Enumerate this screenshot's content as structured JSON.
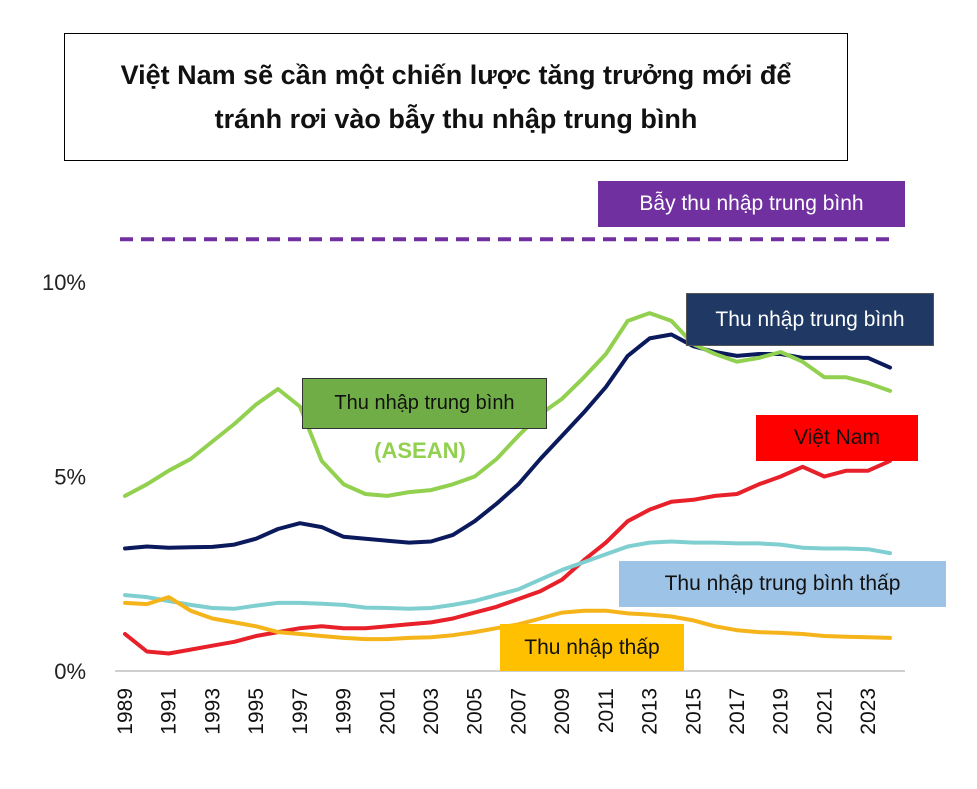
{
  "title": {
    "line1": "Việt Nam sẽ cần một chiến lược tăng trưởng mới để",
    "line2": "tránh rơi vào bẫy thu nhập trung bình"
  },
  "labels": {
    "trap": "Bẫy thu nhập trung bình",
    "middle": "Thu nhập trung bình",
    "asean_box": "Thu nhập trung bình",
    "asean_sub": "(ASEAN)",
    "vietnam": "Việt Nam",
    "lower_middle": "Thu nhập trung bình thấp",
    "low": "Thu nhập thấp"
  },
  "colors": {
    "trap": "#7030a0",
    "middle": "#0b1a5c",
    "middle_box": "#1f3864",
    "asean": "#92d050",
    "asean_box": "#70ad47",
    "vietnam": "#e8202a",
    "vietnam_box": "#ff0000",
    "lower_middle": "#7fcfd0",
    "lower_middle_box": "#9dc3e6",
    "low": "#f5b41a",
    "low_box": "#ffc000"
  },
  "chart_data": {
    "type": "line",
    "x": [
      1989,
      1990,
      1991,
      1992,
      1993,
      1994,
      1995,
      1996,
      1997,
      1998,
      1999,
      2000,
      2001,
      2002,
      2003,
      2004,
      2005,
      2006,
      2007,
      2008,
      2009,
      2010,
      2011,
      2012,
      2013,
      2014,
      2015,
      2016,
      2017,
      2018,
      2019,
      2020,
      2021,
      2022,
      2023,
      2024
    ],
    "x_tick_labels": [
      "1989",
      "1991",
      "1993",
      "1995",
      "1997",
      "1999",
      "2001",
      "2003",
      "2005",
      "2007",
      "2009",
      "2011",
      "2013",
      "2015",
      "2017",
      "2019",
      "2021",
      "2023"
    ],
    "y_tick_labels": [
      "10%",
      "5%",
      "0%"
    ],
    "y_ticks": [
      10,
      5,
      0
    ],
    "ylim": [
      0,
      10
    ],
    "trap_line_value": 11.1,
    "series": [
      {
        "key": "middle",
        "name": "Thu nhập trung bình",
        "values": [
          3.15,
          3.2,
          3.17,
          3.18,
          3.19,
          3.25,
          3.4,
          3.65,
          3.8,
          3.7,
          3.45,
          3.4,
          3.35,
          3.3,
          3.33,
          3.5,
          3.85,
          4.3,
          4.8,
          5.45,
          6.05,
          6.65,
          7.3,
          8.1,
          8.55,
          8.65,
          8.35,
          8.2,
          8.1,
          8.15,
          8.15,
          8.05,
          8.05,
          8.05,
          8.05,
          7.8
        ]
      },
      {
        "key": "asean",
        "name": "Thu nhập trung bình (ASEAN)",
        "values": [
          4.5,
          4.8,
          5.15,
          5.45,
          5.9,
          6.35,
          6.85,
          7.25,
          6.8,
          5.4,
          4.8,
          4.55,
          4.5,
          4.6,
          4.65,
          4.8,
          5.0,
          5.45,
          6.05,
          6.6,
          7.0,
          7.55,
          8.15,
          9.0,
          9.2,
          9.0,
          8.4,
          8.15,
          7.95,
          8.05,
          8.2,
          7.95,
          7.55,
          7.55,
          7.4,
          7.2
        ]
      },
      {
        "key": "vietnam",
        "name": "Việt Nam",
        "values": [
          0.95,
          0.5,
          0.45,
          0.55,
          0.65,
          0.75,
          0.9,
          1.0,
          1.1,
          1.15,
          1.1,
          1.1,
          1.15,
          1.2,
          1.25,
          1.35,
          1.5,
          1.65,
          1.85,
          2.05,
          2.35,
          2.85,
          3.3,
          3.85,
          4.15,
          4.35,
          4.4,
          4.5,
          4.55,
          4.8,
          5.0,
          5.25,
          5.0,
          5.15,
          5.15,
          5.4
        ]
      },
      {
        "key": "lower_middle",
        "name": "Thu nhập trung bình thấp",
        "values": [
          1.95,
          1.9,
          1.8,
          1.7,
          1.62,
          1.6,
          1.68,
          1.75,
          1.75,
          1.73,
          1.7,
          1.63,
          1.62,
          1.6,
          1.62,
          1.7,
          1.8,
          1.95,
          2.1,
          2.35,
          2.6,
          2.8,
          3.0,
          3.2,
          3.3,
          3.33,
          3.3,
          3.3,
          3.28,
          3.28,
          3.25,
          3.17,
          3.15,
          3.15,
          3.13,
          3.03
        ]
      },
      {
        "key": "low",
        "name": "Thu nhập thấp",
        "values": [
          1.75,
          1.72,
          1.9,
          1.55,
          1.35,
          1.25,
          1.15,
          1.0,
          0.95,
          0.9,
          0.85,
          0.82,
          0.82,
          0.85,
          0.87,
          0.92,
          1.0,
          1.1,
          1.2,
          1.35,
          1.5,
          1.55,
          1.55,
          1.48,
          1.45,
          1.4,
          1.3,
          1.15,
          1.05,
          1.0,
          0.98,
          0.95,
          0.9,
          0.88,
          0.87,
          0.85
        ]
      }
    ]
  }
}
